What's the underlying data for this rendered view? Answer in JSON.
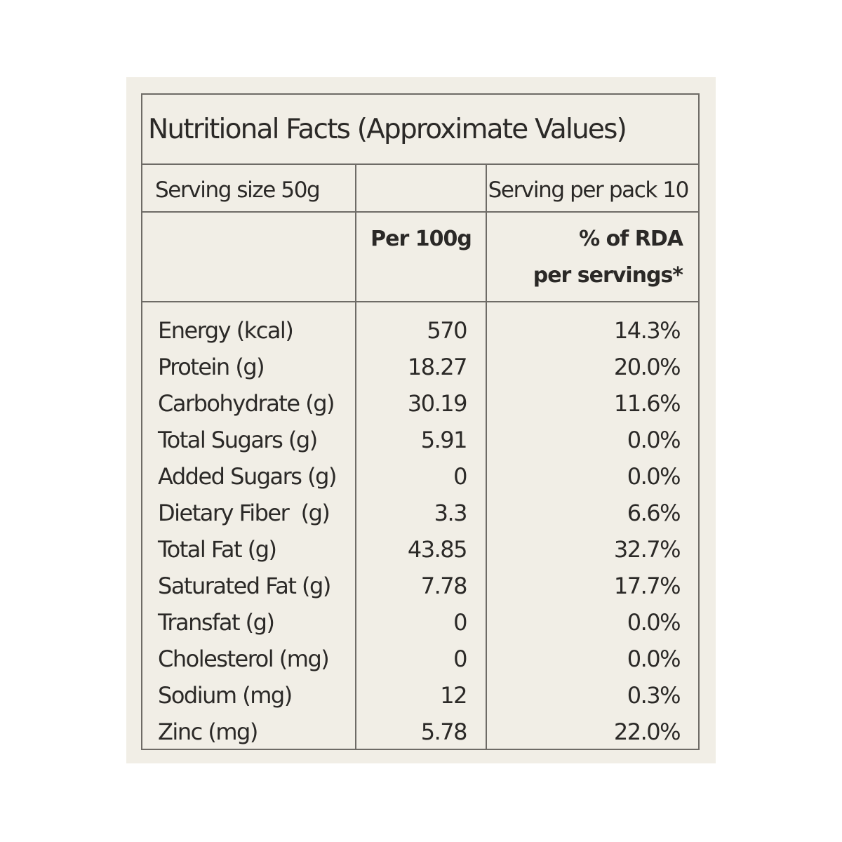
{
  "label": {
    "title": "Nutritional Facts (Approximate Values)",
    "serving_size": "Serving size 50g",
    "serving_per_pack": "Serving per pack 10",
    "columns": {
      "per_100g": "Per 100g",
      "rda_line1": "% of RDA",
      "rda_line2": "per servings*"
    },
    "rows": [
      {
        "nutrient": "Energy (kcal)",
        "per_100g": "570",
        "rda": "14.3%"
      },
      {
        "nutrient": "Protein (g)",
        "per_100g": "18.27",
        "rda": "20.0%"
      },
      {
        "nutrient": "Carbohydrate (g)",
        "per_100g": "30.19",
        "rda": "11.6%"
      },
      {
        "nutrient": "Total Sugars (g)",
        "per_100g": "5.91",
        "rda": "0.0%"
      },
      {
        "nutrient": "Added Sugars (g)",
        "per_100g": "0",
        "rda": "0.0%"
      },
      {
        "nutrient": "Dietary Fiber  (g)",
        "per_100g": "3.3",
        "rda": "6.6%"
      },
      {
        "nutrient": "Total Fat (g)",
        "per_100g": "43.85",
        "rda": "32.7%"
      },
      {
        "nutrient": "Saturated Fat (g)",
        "per_100g": "7.78",
        "rda": "17.7%"
      },
      {
        "nutrient": "Transfat (g)",
        "per_100g": "0",
        "rda": "0.0%"
      },
      {
        "nutrient": "Cholesterol (mg)",
        "per_100g": "0",
        "rda": "0.0%"
      },
      {
        "nutrient": "Sodium (mg)",
        "per_100g": "12",
        "rda": "0.3%"
      },
      {
        "nutrient": "Zinc (mg)",
        "per_100g": "5.78",
        "rda": "22.0%"
      }
    ]
  }
}
